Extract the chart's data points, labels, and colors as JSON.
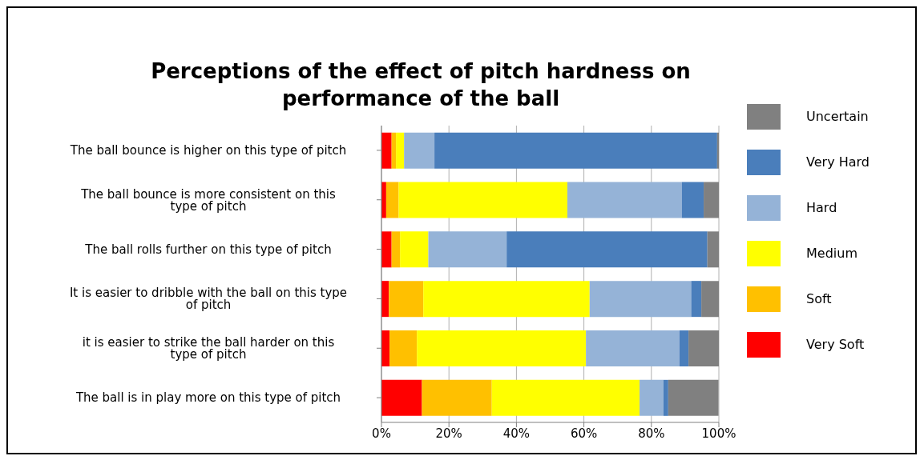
{
  "chart_data": {
    "type": "bar",
    "orientation": "horizontal",
    "stacked": true,
    "title": "Perceptions of the effect of pitch hardness on performance of the ball",
    "categories": [
      "The ball bounce is higher on this type of pitch",
      "The ball bounce is more consistent on this type of pitch",
      "The ball rolls further on this type of pitch",
      "It is easier to dribble with the ball on this type of pitch",
      "it is easier to strike the ball harder on this type of pitch",
      "The ball is in play more on this type of pitch"
    ],
    "series": [
      {
        "name": "Very Soft",
        "color": "#ff0000",
        "values": [
          3.0,
          1.4,
          3.0,
          2.2,
          2.4,
          12.0
        ]
      },
      {
        "name": "Soft",
        "color": "#ffc000",
        "values": [
          1.3,
          3.7,
          2.5,
          10.2,
          8.1,
          20.7
        ]
      },
      {
        "name": "Medium",
        "color": "#ffff00",
        "values": [
          2.4,
          50.0,
          8.4,
          49.3,
          50.1,
          43.8
        ]
      },
      {
        "name": "Hard",
        "color": "#95b3d7",
        "values": [
          9.0,
          33.9,
          23.2,
          30.1,
          27.7,
          7.1
        ]
      },
      {
        "name": "Very Hard",
        "color": "#4a7ebb",
        "values": [
          83.8,
          6.5,
          59.5,
          3.0,
          2.7,
          1.4
        ]
      },
      {
        "name": "Uncertain",
        "color": "#808080",
        "values": [
          0.5,
          4.5,
          3.4,
          5.2,
          9.1,
          14.9
        ]
      }
    ],
    "xlim": [
      0,
      100
    ],
    "xticks": [
      {
        "value": 0,
        "label": "0%"
      },
      {
        "value": 20,
        "label": "20%"
      },
      {
        "value": 40,
        "label": "40%"
      },
      {
        "value": 60,
        "label": "60%"
      },
      {
        "value": 80,
        "label": "80%"
      },
      {
        "value": 100,
        "label": "100%"
      }
    ],
    "grid": "x",
    "legend": "right"
  }
}
